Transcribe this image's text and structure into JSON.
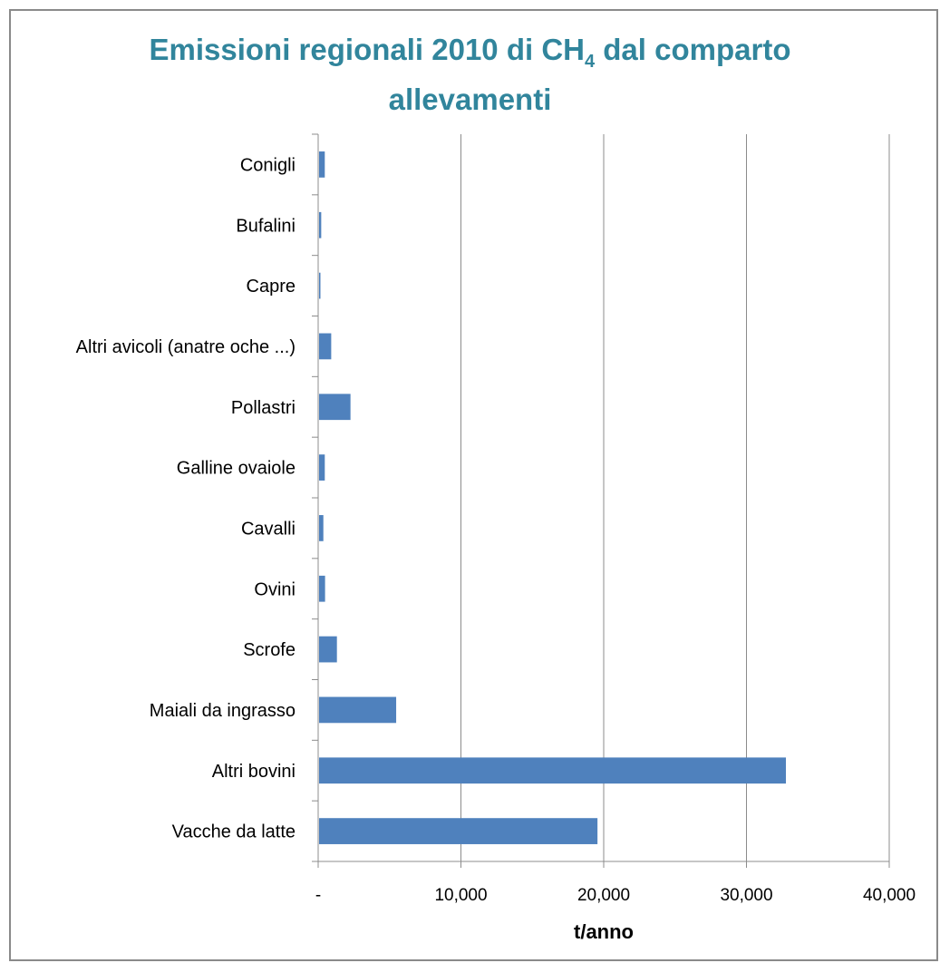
{
  "title_main": "Emissioni regionali 2010 di CH",
  "title_sub": "4",
  "title_rest": " dal comparto",
  "title_line2": "allevamenti",
  "chart_data": {
    "type": "bar",
    "orientation": "horizontal",
    "title": "Emissioni regionali 2010 di CH4 dal comparto allevamenti",
    "xlabel": "t/anno",
    "ylabel": "",
    "xlim": [
      0,
      40000
    ],
    "x_ticks": [
      0,
      10000,
      20000,
      30000,
      40000
    ],
    "x_tick_labels": [
      "-",
      "10,000",
      "20,000",
      "30,000",
      "40,000"
    ],
    "categories": [
      "Conigli",
      "Bufalini",
      "Capre",
      "Altri avicoli (anatre  oche  ...)",
      "Pollastri",
      "Galline ovaiole",
      "Cavalli",
      "Ovini",
      "Scrofe",
      "Maiali da ingrasso",
      "Altri bovini",
      "Vacche da latte"
    ],
    "values": [
      400,
      150,
      80,
      850,
      2200,
      400,
      300,
      420,
      1250,
      5400,
      32700,
      19500
    ],
    "bar_color": "#4F81BD",
    "grid": "vertical",
    "legend": "none"
  }
}
